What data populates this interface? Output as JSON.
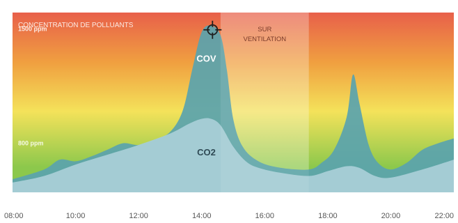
{
  "chart_data": {
    "type": "area",
    "title": "CONCENTRATION DE POLLUANTS",
    "x_ticks": [
      "08:00",
      "10:00",
      "12:00",
      "14:00",
      "16:00",
      "18:00",
      "20:00",
      "22:00"
    ],
    "x_range_hours": [
      8,
      22
    ],
    "y_range_ppm": [
      500,
      1600
    ],
    "reference_levels": [
      {
        "label": "1500 ppm",
        "value": 1500
      },
      {
        "label": "800 ppm",
        "value": 800
      }
    ],
    "highlight_period": {
      "label": "SUR VENTILATION",
      "start_hour": 14.6,
      "end_hour": 17.4
    },
    "gradient_colors": [
      "#e8604a",
      "#f0a040",
      "#f4e25a",
      "#8cc84c"
    ],
    "series": [
      {
        "name": "CO2",
        "color": "#a8cdd6",
        "points": [
          [
            8.0,
            560
          ],
          [
            9.0,
            600
          ],
          [
            10.0,
            670
          ],
          [
            11.0,
            730
          ],
          [
            12.0,
            790
          ],
          [
            13.0,
            860
          ],
          [
            13.6,
            920
          ],
          [
            14.0,
            950
          ],
          [
            14.3,
            950
          ],
          [
            14.6,
            910
          ],
          [
            15.0,
            780
          ],
          [
            15.4,
            690
          ],
          [
            15.8,
            650
          ],
          [
            16.5,
            620
          ],
          [
            17.4,
            600
          ],
          [
            18.0,
            630
          ],
          [
            18.6,
            660
          ],
          [
            19.0,
            650
          ],
          [
            19.5,
            600
          ],
          [
            20.0,
            590
          ],
          [
            21.0,
            640
          ],
          [
            22.0,
            700
          ]
        ]
      },
      {
        "name": "COV",
        "color": "#5aa3ae",
        "points": [
          [
            8.0,
            580
          ],
          [
            9.0,
            640
          ],
          [
            9.5,
            700
          ],
          [
            10.0,
            690
          ],
          [
            10.5,
            720
          ],
          [
            11.0,
            760
          ],
          [
            11.5,
            800
          ],
          [
            12.0,
            790
          ],
          [
            12.5,
            820
          ],
          [
            13.0,
            870
          ],
          [
            13.4,
            1000
          ],
          [
            13.7,
            1250
          ],
          [
            14.0,
            1480
          ],
          [
            14.3,
            1520
          ],
          [
            14.6,
            1460
          ],
          [
            14.8,
            1250
          ],
          [
            15.0,
            950
          ],
          [
            15.3,
            780
          ],
          [
            15.8,
            690
          ],
          [
            16.5,
            650
          ],
          [
            17.4,
            640
          ],
          [
            17.8,
            680
          ],
          [
            18.2,
            760
          ],
          [
            18.6,
            960
          ],
          [
            18.8,
            1220
          ],
          [
            19.0,
            1050
          ],
          [
            19.3,
            790
          ],
          [
            19.6,
            680
          ],
          [
            20.0,
            640
          ],
          [
            20.5,
            680
          ],
          [
            21.0,
            760
          ],
          [
            21.5,
            800
          ],
          [
            22.0,
            830
          ]
        ]
      }
    ],
    "annotations": [
      {
        "label": "COV",
        "x": 14.15,
        "y": 1300
      },
      {
        "label": "CO2",
        "x": 14.15,
        "y": 725
      }
    ],
    "marker_icon": "crosshair-icon"
  }
}
